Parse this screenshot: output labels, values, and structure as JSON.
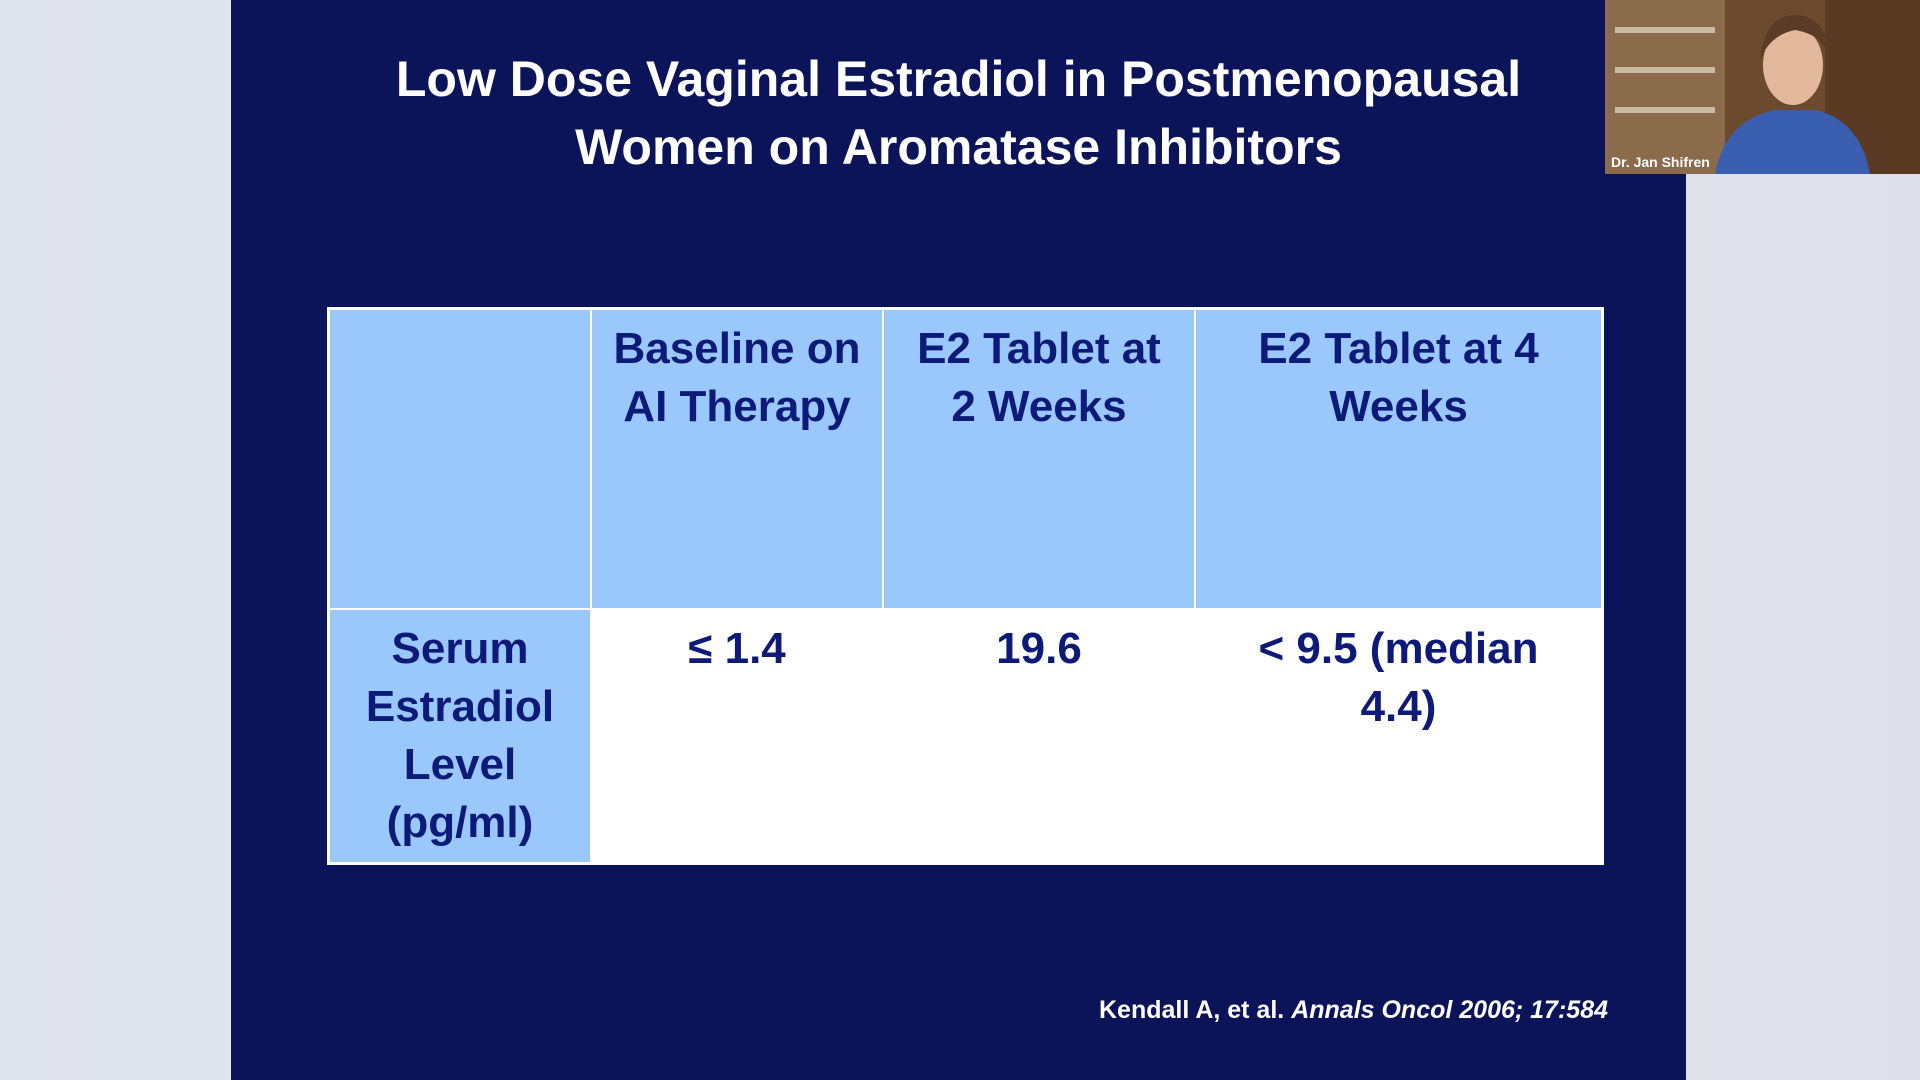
{
  "slide": {
    "title": [
      "Low Dose Vaginal Estradiol in Postmenopausal",
      "Women on Aromatase Inhibitors"
    ],
    "table": {
      "header": [
        "Baseline on AI Therapy",
        "E2 Tablet at 2 Weeks",
        "E2 Tablet at 4 Weeks"
      ],
      "rows": [
        [
          "Serum Estradiol Level (pg/ml)",
          "≤ 1.4",
          "19.6",
          "< 9.5 (median 4.4)"
        ]
      ]
    },
    "citation": {
      "authors": "Kendall A, et al.",
      "journal": "Annals Oncol 2006; 17:584"
    }
  },
  "video": {
    "name": "Dr. Jan Shifren"
  }
}
